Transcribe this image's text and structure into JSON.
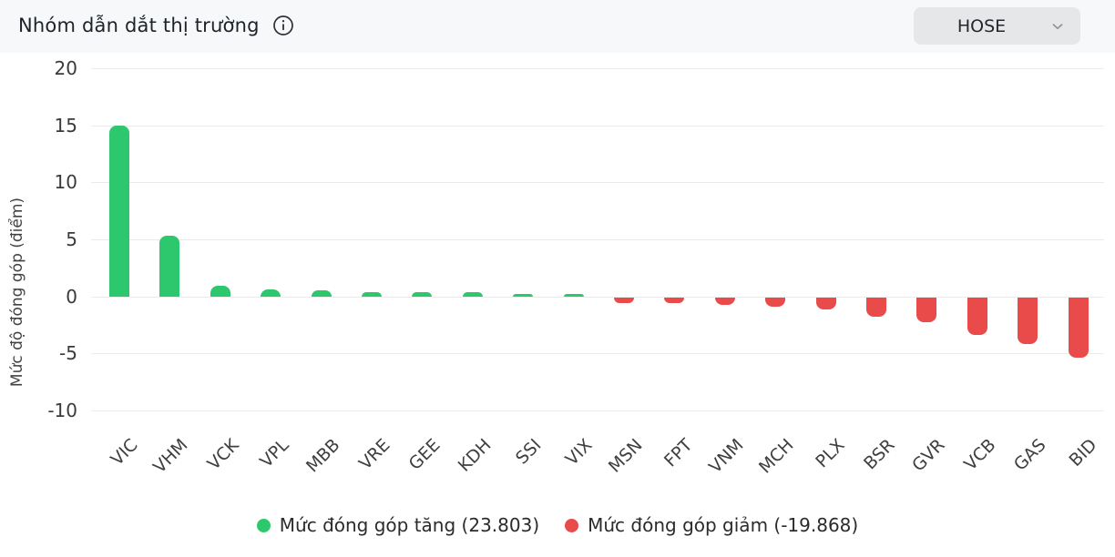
{
  "header": {
    "title": "Nhóm dẫn dắt thị trường",
    "info_icon": "info-circle-icon",
    "exchange_selector": {
      "value": "HOSE",
      "chevron_icon": "chevron-down-icon"
    }
  },
  "chart_data": {
    "type": "bar",
    "title": "Nhóm dẫn dắt thị trường",
    "xlabel": "",
    "ylabel": "Mức độ đóng góp (điểm)",
    "ylim": [
      -10,
      20
    ],
    "yticks": [
      20,
      15,
      10,
      5,
      0,
      -5,
      -10
    ],
    "grid": true,
    "legend_position": "bottom",
    "categories": [
      "VIC",
      "VHM",
      "VCK",
      "VPL",
      "MBB",
      "VRE",
      "GEE",
      "KDH",
      "SSI",
      "VIX",
      "MSN",
      "FPT",
      "VNM",
      "MCH",
      "PLX",
      "BSR",
      "GVR",
      "VCB",
      "GAS",
      "BID"
    ],
    "values": [
      15.0,
      5.3,
      0.95,
      0.6,
      0.5,
      0.4,
      0.4,
      0.4,
      0.25,
      0.2,
      -0.5,
      -0.5,
      -0.65,
      -0.85,
      -1.1,
      -1.7,
      -2.2,
      -3.3,
      -4.1,
      -5.3
    ],
    "totals": {
      "increase": "23.803",
      "decrease": "-19.868"
    },
    "legend": [
      {
        "label": "Mức đóng góp tăng (23.803)",
        "color": "#2dc76d"
      },
      {
        "label": "Mức đóng góp giảm (-19.868)",
        "color": "#e94b4b"
      }
    ],
    "colors": {
      "positive": "#2dc76d",
      "negative": "#e94b4b",
      "gridline": "#ebebeb",
      "header_bg": "#f7f8f9",
      "dropdown_bg": "#e6e7e9"
    }
  }
}
